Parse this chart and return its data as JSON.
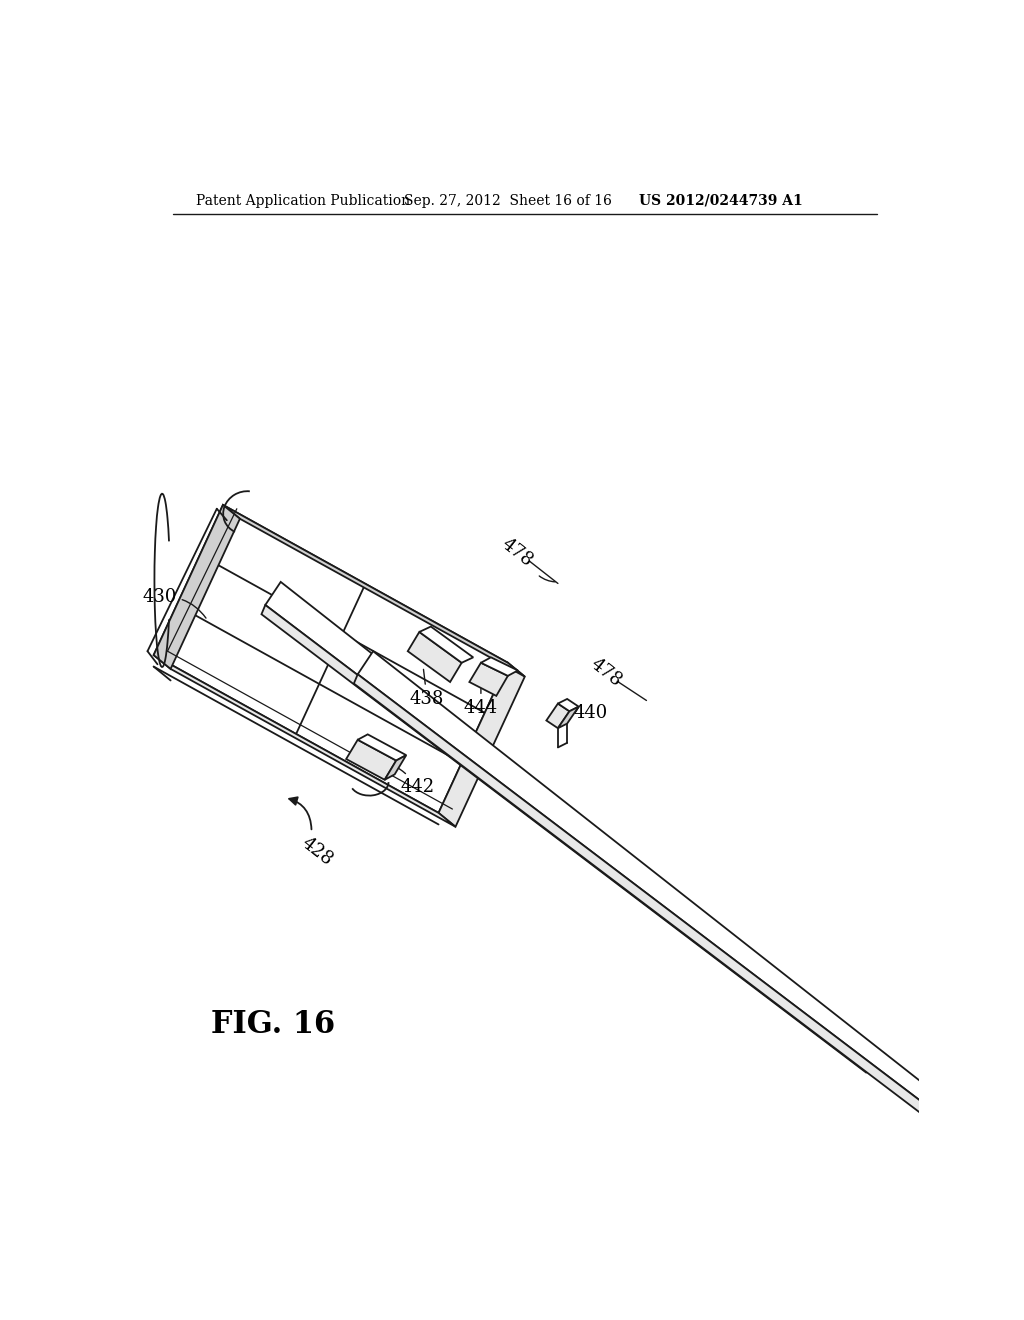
{
  "bg_color": "#ffffff",
  "header_text": "Patent Application Publication",
  "header_date": "Sep. 27, 2012  Sheet 16 of 16",
  "header_patent": "US 2012/0244739 A1",
  "fig_label": "FIG. 16",
  "line_color": "#1a1a1a",
  "face_color": "#ffffff",
  "shade_color": "#e8e8e8",
  "dark_shade": "#d0d0d0"
}
